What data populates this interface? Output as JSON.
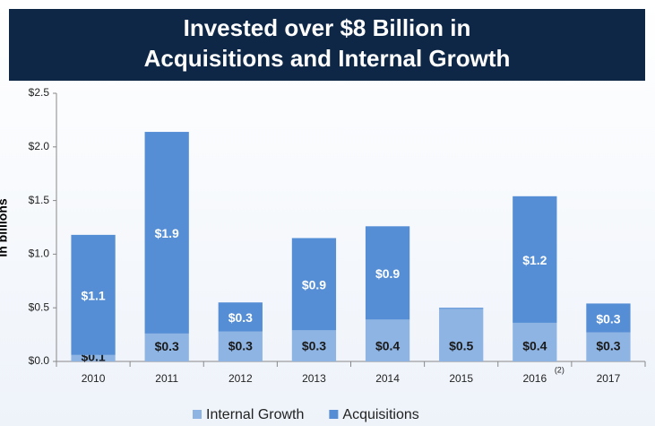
{
  "chart_data": {
    "type": "stacked_bar",
    "title": [
      "Invested over $8 Billion in",
      "Acquisitions and Internal Growth"
    ],
    "y_label": "In billions",
    "categories": [
      "2010",
      "2011",
      "2012",
      "2013",
      "2014",
      "2015",
      "2016",
      "2017"
    ],
    "series": [
      {
        "name": "Internal Growth",
        "color": "#8eb4e3",
        "values": [
          0.06,
          0.26,
          0.28,
          0.29,
          0.39,
          0.49,
          0.36,
          0.27
        ],
        "value_labels": [
          "$0.1",
          "$0.3",
          "$0.3",
          "$0.3",
          "$0.4",
          "$0.5",
          "$0.4",
          "$0.3"
        ]
      },
      {
        "name": "Acquisitions",
        "color": "#558ed5",
        "values": [
          1.12,
          1.88,
          0.27,
          0.86,
          0.87,
          0.01,
          1.18,
          0.27
        ],
        "value_labels": [
          "$1.1",
          "$1.9",
          "$0.3",
          "$0.9",
          "$0.9",
          null,
          "$1.2",
          "$0.3"
        ]
      }
    ],
    "ylim": [
      0,
      2.5
    ],
    "yticks": [
      {
        "value": 0,
        "label": "$0.0"
      },
      {
        "value": 0.5,
        "label": "$0.5"
      },
      {
        "value": 1,
        "label": "$1.0"
      },
      {
        "value": 1.5,
        "label": "$1.5"
      },
      {
        "value": 2,
        "label": "$2.0"
      },
      {
        "value": 2.5,
        "label": "$2.5"
      }
    ],
    "annotations": [
      {
        "text": "(2)",
        "category": "2016"
      }
    ],
    "legend": "bottom"
  }
}
